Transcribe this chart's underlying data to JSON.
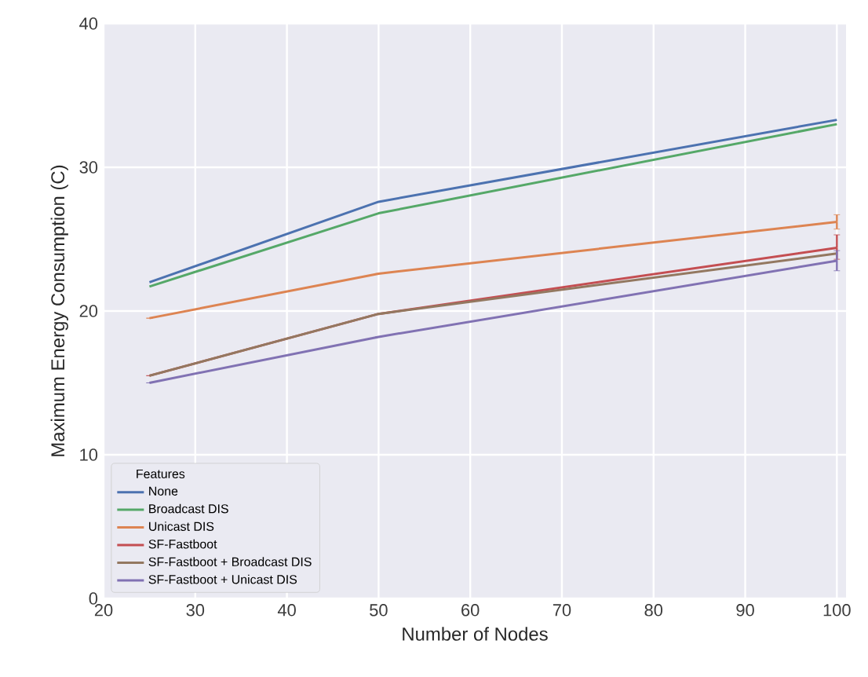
{
  "chart_data": {
    "type": "line",
    "xlabel": "Number of Nodes",
    "ylabel": "Maximum Energy Consumption (C)",
    "legend_title": "Features",
    "x": [
      25,
      50,
      100
    ],
    "series": [
      {
        "name": "None",
        "color": "#4c72b0",
        "values": [
          22.0,
          27.6,
          33.3
        ]
      },
      {
        "name": "Broadcast DIS",
        "color": "#55a868",
        "values": [
          21.7,
          26.8,
          33.0
        ]
      },
      {
        "name": "Unicast DIS",
        "color": "#dd8452",
        "values": [
          19.5,
          22.6,
          26.2
        ],
        "errors": [
          null,
          null,
          [
            25.7,
            26.7
          ]
        ]
      },
      {
        "name": "SF-Fastboot",
        "color": "#c44e52",
        "values": [
          15.5,
          19.8,
          24.4
        ],
        "errors": [
          null,
          null,
          [
            23.6,
            25.3
          ]
        ]
      },
      {
        "name": "SF-Fastboot + Broadcast DIS",
        "color": "#937860",
        "values": [
          15.5,
          19.8,
          24.0
        ]
      },
      {
        "name": "SF-Fastboot + Unicast DIS",
        "color": "#8172b3",
        "values": [
          15.0,
          18.2,
          23.5
        ],
        "errors": [
          null,
          null,
          [
            22.8,
            24.2
          ]
        ]
      }
    ],
    "xlim": [
      20,
      101
    ],
    "ylim": [
      0,
      40
    ],
    "xticks": [
      20,
      30,
      40,
      50,
      60,
      70,
      80,
      90,
      100
    ],
    "yticks": [
      0,
      10,
      20,
      30,
      40
    ],
    "grid": true,
    "legend": "bottom left",
    "marker": "none",
    "line_style": "solid"
  }
}
